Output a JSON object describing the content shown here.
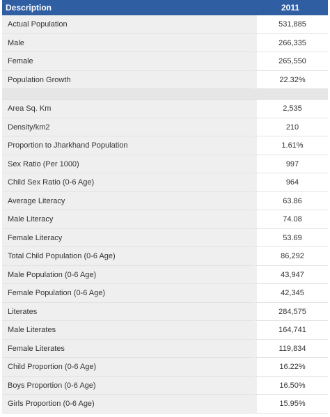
{
  "header": {
    "description": "Description",
    "year": "2011"
  },
  "group1": [
    {
      "label": "Actual Population",
      "value": "531,885"
    },
    {
      "label": "Male",
      "value": "266,335"
    },
    {
      "label": "Female",
      "value": "265,550"
    },
    {
      "label": "Population Growth",
      "value": "22.32%"
    }
  ],
  "group2": [
    {
      "label": "Area Sq. Km",
      "value": "2,535"
    },
    {
      "label": "Density/km2",
      "value": "210"
    },
    {
      "label": "Proportion to Jharkhand Population",
      "value": "1.61%"
    },
    {
      "label": "Sex Ratio (Per 1000)",
      "value": "997"
    },
    {
      "label": "Child Sex Ratio (0-6 Age)",
      "value": "964"
    },
    {
      "label": "Average Literacy",
      "value": "63.86"
    },
    {
      "label": "Male Literacy",
      "value": "74.08"
    },
    {
      "label": "Female Literacy",
      "value": "53.69"
    },
    {
      "label": "Total Child Population (0-6 Age)",
      "value": "86,292"
    },
    {
      "label": "Male Population (0-6 Age)",
      "value": "43,947"
    },
    {
      "label": "Female Population (0-6 Age)",
      "value": "42,345"
    },
    {
      "label": "Literates",
      "value": "284,575"
    },
    {
      "label": "Male Literates",
      "value": "164,741"
    },
    {
      "label": "Female Literates",
      "value": "119,834"
    },
    {
      "label": "Child Proportion (0-6 Age)",
      "value": "16.22%"
    },
    {
      "label": "Boys Proportion (0-6 Age)",
      "value": "16.50%"
    },
    {
      "label": "Girls Proportion (0-6 Age)",
      "value": "15.95%"
    }
  ]
}
